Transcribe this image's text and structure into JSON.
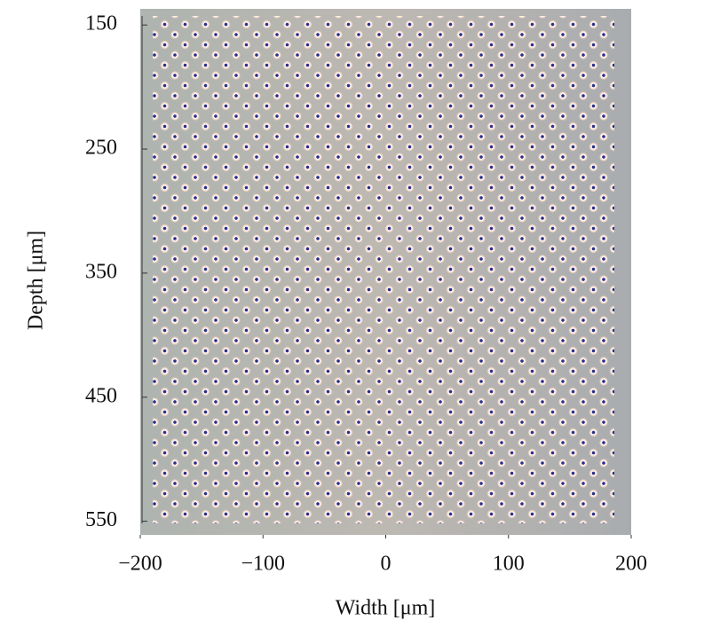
{
  "chart_data": {
    "type": "image",
    "xlabel": "Width [μm]",
    "ylabel": "Depth [μm]",
    "xlim": [
      -200,
      200
    ],
    "xticks": [
      {
        "value": -200,
        "label": "−200"
      },
      {
        "value": -100,
        "label": "−100"
      },
      0,
      100,
      200
    ],
    "ylim": [
      137,
      561
    ],
    "y_inverted": true,
    "yticks": [
      150,
      250,
      350,
      450,
      550
    ]
  }
}
